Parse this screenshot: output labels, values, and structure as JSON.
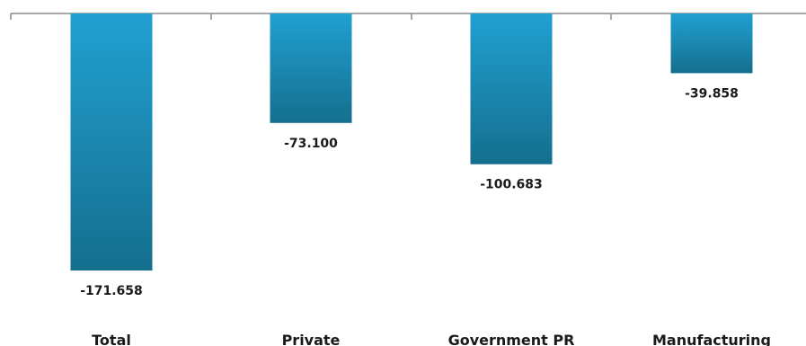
{
  "chart_data": {
    "type": "bar",
    "categories": [
      "Total",
      "Private",
      "Government PR",
      "Manufacturing"
    ],
    "values": [
      -171.658,
      -73.1,
      -100.683,
      -39.858
    ],
    "data_labels": [
      "-171.658",
      "-73.100",
      "-100.683",
      "-39.858"
    ],
    "title": "",
    "xlabel": "",
    "ylabel": "",
    "ylim": [
      -180,
      0
    ],
    "grid": false,
    "legend": "none",
    "colors": {
      "bar_top": "#21a0d2",
      "bar_bottom": "#156f8e",
      "axis": "#8c8c8c"
    }
  }
}
